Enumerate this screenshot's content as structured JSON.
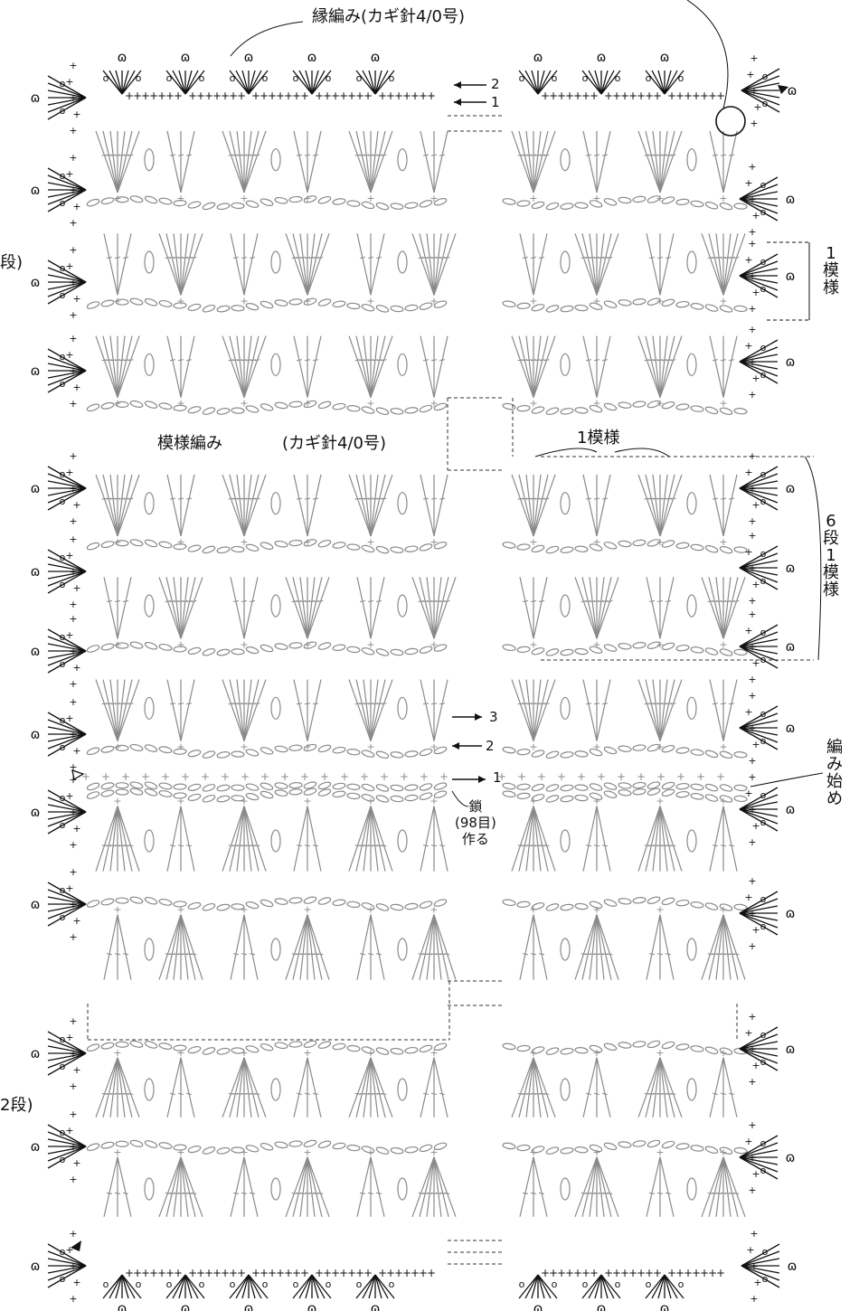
{
  "labels": {
    "edging": "縁編み(カギ針4/0号)",
    "pattern_stitch": "模様編み",
    "pattern_hook": "(カギ針4/0号)",
    "one_repeat": "1模様",
    "side_one_repeat": "1\n模\n様",
    "six_rows_one_repeat": "6\n段\n1\n模\n様",
    "start": "編\nみ\n始\nめ",
    "chain_note": "鎖\n(98目)\n作る",
    "left_cut_top": "段)",
    "left_cut_bottom": "2段)"
  },
  "row_markers": {
    "top_row_2": "2",
    "top_row_1": "1",
    "row_3": "3",
    "row_2": "2",
    "row_1": "1"
  },
  "colors": {
    "pattern_stitches": "#8a8a8a",
    "edging_stitches": "#111111",
    "dashed_lines": "#333333"
  },
  "symbols": {
    "single_crochet": "+",
    "chain": "o",
    "picot": "ɷ"
  }
}
